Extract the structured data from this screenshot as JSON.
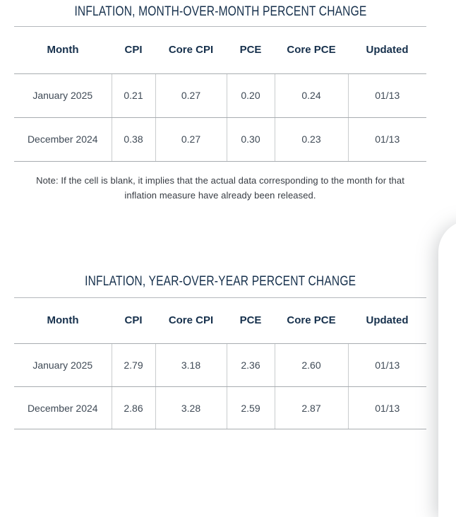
{
  "colors": {
    "heading_navy": "#16304c",
    "body_text": "#3f4a56",
    "note_text": "#363b42",
    "horizontal_rule": "#a8acb0",
    "vertical_rule": "#c9ccce",
    "background": "#ffffff"
  },
  "tables": [
    {
      "title": "INFLATION, MONTH-OVER-MONTH PERCENT CHANGE",
      "columns": [
        "Month",
        "CPI",
        "Core CPI",
        "PCE",
        "Core PCE",
        "Updated"
      ],
      "rows": [
        [
          "January 2025",
          "0.21",
          "0.27",
          "0.20",
          "0.24",
          "01/13"
        ],
        [
          "December 2024",
          "0.38",
          "0.27",
          "0.30",
          "0.23",
          "01/13"
        ]
      ]
    },
    {
      "title": "INFLATION, YEAR-OVER-YEAR PERCENT CHANGE",
      "columns": [
        "Month",
        "CPI",
        "Core CPI",
        "PCE",
        "Core PCE",
        "Updated"
      ],
      "rows": [
        [
          "January 2025",
          "2.79",
          "3.18",
          "2.36",
          "2.60",
          "01/13"
        ],
        [
          "December 2024",
          "2.86",
          "3.28",
          "2.59",
          "2.87",
          "01/13"
        ]
      ]
    }
  ],
  "note": "Note: If the cell is blank, it implies that the actual data corresponding to the month for that inflation measure have already been released."
}
